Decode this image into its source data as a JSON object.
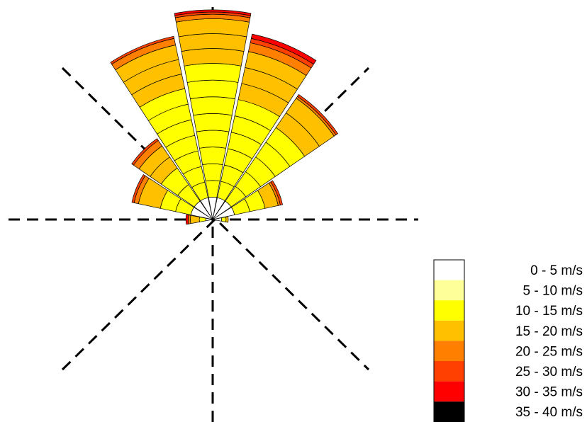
{
  "chart_data": {
    "type": "wind-rose",
    "bin_unit": "m/s",
    "bins": [
      {
        "label": "0 - 5 m/s",
        "color": "#ffffff"
      },
      {
        "label": "5 - 10 m/s",
        "color": "#ffff99"
      },
      {
        "label": "10 - 15 m/s",
        "color": "#ffff00"
      },
      {
        "label": "15 - 20 m/s",
        "color": "#ffc000"
      },
      {
        "label": "20 - 25 m/s",
        "color": "#ff8000"
      },
      {
        "label": "25 - 30 m/s",
        "color": "#ff4000"
      },
      {
        "label": "30 - 35 m/s",
        "color": "#ff0000"
      },
      {
        "label": "35 - 40 m/s",
        "color": "#000000"
      }
    ],
    "sectors": [
      {
        "direction": "N",
        "angle": 0,
        "values": [
          0.1,
          0.0,
          0.6,
          0.2,
          0.02,
          0.01,
          0.01,
          0
        ]
      },
      {
        "direction": "NNE",
        "angle": 22.5,
        "values": [
          0.1,
          0.0,
          0.45,
          0.22,
          0.04,
          0.02,
          0.02,
          0
        ]
      },
      {
        "direction": "NE",
        "angle": 45,
        "values": [
          0.1,
          0.0,
          0.4,
          0.16,
          0.01,
          0.01,
          0,
          0
        ]
      },
      {
        "direction": "ENE",
        "angle": 67.5,
        "values": [
          0.1,
          0.0,
          0.14,
          0.06,
          0.01,
          0.01,
          0,
          0
        ]
      },
      {
        "direction": "E",
        "angle": 90,
        "values": [
          0.04,
          0.0,
          0.02,
          0.01,
          0,
          0,
          0,
          0
        ]
      },
      {
        "direction": "W",
        "angle": 270,
        "values": [
          0.03,
          0.0,
          0.03,
          0.04,
          0.01,
          0,
          0.01,
          0
        ]
      },
      {
        "direction": "WNW",
        "angle": 292.5,
        "values": [
          0.1,
          0.0,
          0.14,
          0.1,
          0.02,
          0.01,
          0,
          0
        ]
      },
      {
        "direction": "NW",
        "angle": 315,
        "values": [
          0.1,
          0.0,
          0.18,
          0.12,
          0.03,
          0.01,
          0,
          0
        ]
      },
      {
        "direction": "NNW",
        "angle": 337.5,
        "values": [
          0.1,
          0.0,
          0.5,
          0.2,
          0.03,
          0.01,
          0,
          0
        ]
      }
    ],
    "grid": "dashed axes at 45-degree intervals"
  }
}
